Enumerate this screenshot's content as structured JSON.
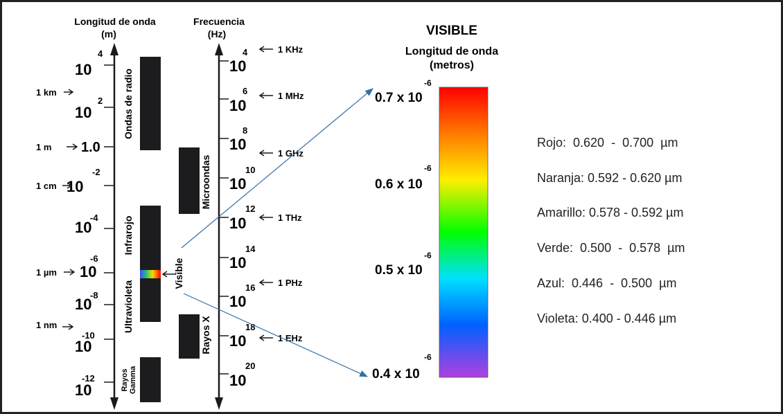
{
  "wavelength_axis": {
    "title": "Longitud de onda",
    "unit": "(m)",
    "ticks": [
      {
        "base": "10",
        "exp": "4"
      },
      {
        "base": "10",
        "exp": "2"
      },
      {
        "base": "1.0",
        "exp": ""
      },
      {
        "base": "10",
        "exp": "-2"
      },
      {
        "base": "10",
        "exp": "-4"
      },
      {
        "base": "10",
        "exp": "-6"
      },
      {
        "base": "10",
        "exp": "-8"
      },
      {
        "base": "10",
        "exp": "-10"
      },
      {
        "base": "10",
        "exp": "-12"
      }
    ],
    "markers": [
      "1 km",
      "1 m",
      "1 cm",
      "1 µm",
      "1 nm"
    ]
  },
  "frequency_axis": {
    "title": "Frecuencia",
    "unit": "(Hz)",
    "ticks": [
      {
        "base": "10",
        "exp": "4"
      },
      {
        "base": "10",
        "exp": "6"
      },
      {
        "base": "10",
        "exp": "8"
      },
      {
        "base": "10",
        "exp": "10"
      },
      {
        "base": "10",
        "exp": "12"
      },
      {
        "base": "10",
        "exp": "14"
      },
      {
        "base": "10",
        "exp": "16"
      },
      {
        "base": "10",
        "exp": "18"
      },
      {
        "base": "10",
        "exp": "20"
      }
    ],
    "markers": [
      "1 KHz",
      "1 MHz",
      "1 GHz",
      "1 THz",
      "1 PHz",
      "1 EHz"
    ]
  },
  "bands": {
    "radio": "Ondas de radio",
    "micro": "Microondas",
    "infra": "Infrarojo",
    "ultra": "Ultravioleta",
    "xray": "Rayos X",
    "gamma_1": "Rayos",
    "gamma_2": "Gamma",
    "visible": "Visible"
  },
  "visible_panel": {
    "title": "VISIBLE",
    "subtitle_1": "Longitud de onda",
    "subtitle_2": "(metros)",
    "scale": [
      {
        "base": "0.7 x 10",
        "exp": "-6"
      },
      {
        "base": "0.6 x 10",
        "exp": "-6"
      },
      {
        "base": "0.5 x 10",
        "exp": "-6"
      },
      {
        "base": "0.4 x 10",
        "exp": "-6"
      }
    ]
  },
  "color_ranges": [
    "Rojo:  0.620  -  0.700  µm",
    "Naranja: 0.592 - 0.620 µm",
    "Amarillo: 0.578 - 0.592 µm",
    "Verde:  0.500  -  0.578  µm",
    "Azul:  0.446  -  0.500  µm",
    "Violeta: 0.400 - 0.446 µm"
  ],
  "colors": {
    "ink": "#1a1a1a",
    "band_fill": "#1c1c1e",
    "arrow_blue": "#2f6fa8",
    "spectrum": [
      "#ff0000",
      "#ff7a00",
      "#ffee00",
      "#00ff00",
      "#00e0ff",
      "#0060ff",
      "#b040e0"
    ]
  }
}
